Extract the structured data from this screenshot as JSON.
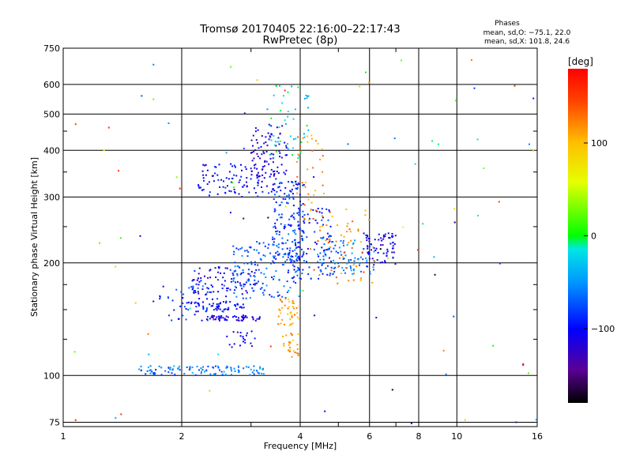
{
  "chart_data": {
    "type": "scatter",
    "title": "Tromsø 20170405 22:16:00–22:17:43",
    "subtitle": "RwPretec (8p)",
    "xlabel": "Frequency [MHz]",
    "ylabel": "Stationary phase Virtual Height [km]",
    "xscale": "log",
    "yscale": "log",
    "xlim": [
      1,
      16
    ],
    "ylim": [
      73,
      750
    ],
    "grid": true,
    "x_ticks": [
      1,
      2,
      4,
      6,
      8,
      10,
      16
    ],
    "x_tick_labels": [
      "1",
      "2",
      "4",
      "6",
      "8",
      "10",
      "16"
    ],
    "y_ticks": [
      75,
      100,
      200,
      300,
      400,
      500,
      600,
      750
    ],
    "y_tick_labels": [
      "75",
      "100",
      "200",
      "300",
      "400",
      "500",
      "600",
      "750"
    ],
    "phases_info": {
      "heading": "Phases",
      "line_o": "mean, sd,O: −75.1, 22.0",
      "line_x": "mean, sd,X: 101.8, 24.6"
    },
    "colorbar": {
      "label": "[deg]",
      "range": [
        -180,
        180
      ],
      "ticks": [
        100,
        0,
        -100
      ],
      "tick_labels": [
        "100",
        "0",
        "−100"
      ],
      "colormap": "rainbow (black-purple-blue-cyan-green-yellow-orange-red)"
    },
    "clusters": [
      {
        "x": [
          1.55,
          3.25
        ],
        "y": [
          100,
          106
        ],
        "phase": -60,
        "n": 110
      },
      {
        "x": [
          1.75,
          2.6
        ],
        "y": [
          140,
          175
        ],
        "phase": -90,
        "n": 60
      },
      {
        "x": [
          2.1,
          3.1
        ],
        "y": [
          165,
          195
        ],
        "phase": -105,
        "n": 90
      },
      {
        "x": [
          2.1,
          2.9
        ],
        "y": [
          150,
          158
        ],
        "phase": -95,
        "n": 45
      },
      {
        "x": [
          2.3,
          3.2
        ],
        "y": [
          140,
          145
        ],
        "phase": -120,
        "n": 55
      },
      {
        "x": [
          2.6,
          3.1
        ],
        "y": [
          118,
          132
        ],
        "phase": -115,
        "n": 20
      },
      {
        "x": [
          2.7,
          4.0
        ],
        "y": [
          160,
          230
        ],
        "phase": -70,
        "n": 130
      },
      {
        "x": [
          3.4,
          4.1
        ],
        "y": [
          200,
          330
        ],
        "phase": -80,
        "n": 140
      },
      {
        "x": [
          3.7,
          4.8
        ],
        "y": [
          180,
          280
        ],
        "phase": -90,
        "n": 110
      },
      {
        "x": [
          4.4,
          6.2
        ],
        "y": [
          185,
          230
        ],
        "phase": -60,
        "n": 90
      },
      {
        "x": [
          5.8,
          7.0
        ],
        "y": [
          195,
          240
        ],
        "phase": -110,
        "n": 70
      },
      {
        "x": [
          4.2,
          6.2
        ],
        "y": [
          175,
          280
        ],
        "phase": 120,
        "n": 60
      },
      {
        "x": [
          3.5,
          4.0
        ],
        "y": [
          135,
          160
        ],
        "phase": 110,
        "n": 40
      },
      {
        "x": [
          3.6,
          4.0
        ],
        "y": [
          110,
          130
        ],
        "phase": 110,
        "n": 25
      },
      {
        "x": [
          2.2,
          3.6
        ],
        "y": [
          300,
          370
        ],
        "phase": -100,
        "n": 110
      },
      {
        "x": [
          3.0,
          3.7
        ],
        "y": [
          340,
          470
        ],
        "phase": -115,
        "n": 80
      },
      {
        "x": [
          3.3,
          4.2
        ],
        "y": [
          380,
          600
        ],
        "phase": -20,
        "n": 50
      },
      {
        "x": [
          3.9,
          4.6
        ],
        "y": [
          260,
          450
        ],
        "phase": 120,
        "n": 35
      },
      {
        "x": [
          1,
          16
        ],
        "y": [
          73,
          700
        ],
        "phase": 0,
        "n": 90,
        "scatter": true
      }
    ]
  }
}
